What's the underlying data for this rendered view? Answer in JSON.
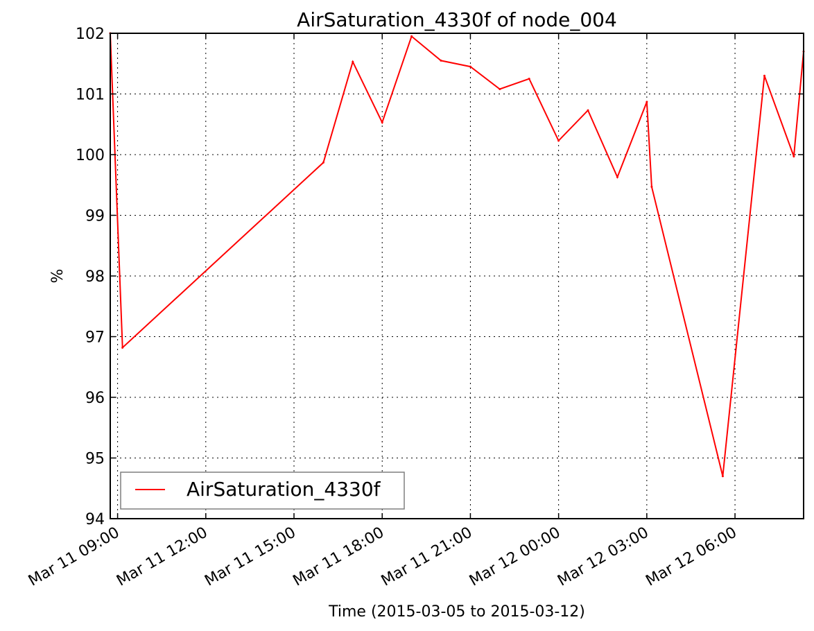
{
  "chart_data": {
    "type": "line",
    "title": "AirSaturation_4330f of node_004",
    "xlabel": "Time (2015-03-05 to 2015-03-12)",
    "ylabel": "%",
    "ylim": [
      94,
      102
    ],
    "xlim": [
      "2015-03-11 08:45",
      "2015-03-12 08:20"
    ],
    "grid": true,
    "legend_position": "lower-left",
    "x_ticks": [
      {
        "time": "2015-03-11 09:00",
        "label": "Mar 11 09:00"
      },
      {
        "time": "2015-03-11 12:00",
        "label": "Mar 11 12:00"
      },
      {
        "time": "2015-03-11 15:00",
        "label": "Mar 11 15:00"
      },
      {
        "time": "2015-03-11 18:00",
        "label": "Mar 11 18:00"
      },
      {
        "time": "2015-03-11 21:00",
        "label": "Mar 11 21:00"
      },
      {
        "time": "2015-03-12 00:00",
        "label": "Mar 12 00:00"
      },
      {
        "time": "2015-03-12 03:00",
        "label": "Mar 12 03:00"
      },
      {
        "time": "2015-03-12 06:00",
        "label": "Mar 12 06:00"
      }
    ],
    "y_ticks": [
      "94",
      "95",
      "96",
      "97",
      "98",
      "99",
      "100",
      "101",
      "102"
    ],
    "series": [
      {
        "name": "AirSaturation_4330f",
        "color": "#ff0000",
        "x": [
          "2015-03-11 08:45",
          "2015-03-11 09:10",
          "2015-03-11 16:00",
          "2015-03-11 17:00",
          "2015-03-11 18:00",
          "2015-03-11 19:00",
          "2015-03-11 20:00",
          "2015-03-11 21:00",
          "2015-03-11 22:00",
          "2015-03-11 23:00",
          "2015-03-12 00:00",
          "2015-03-12 01:00",
          "2015-03-12 02:00",
          "2015-03-12 03:00",
          "2015-03-12 03:10",
          "2015-03-12 05:35",
          "2015-03-12 07:00",
          "2015-03-12 08:00",
          "2015-03-12 08:20"
        ],
        "y": [
          102.0,
          96.82,
          99.87,
          101.53,
          100.53,
          101.95,
          101.55,
          101.45,
          101.08,
          101.25,
          100.23,
          100.73,
          99.63,
          100.87,
          99.47,
          94.7,
          101.3,
          99.97,
          101.7
        ]
      }
    ]
  }
}
